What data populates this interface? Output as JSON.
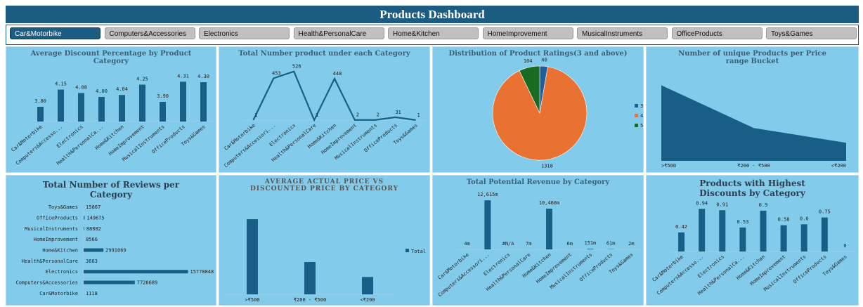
{
  "title": "Products Dashboard",
  "slicers": [
    "Car&Motorbike",
    "Computers&Accessories",
    "Electronics",
    "Health&PersonalCare",
    "Home&Kitchen",
    "HomeImprovement",
    "MusicalInstruments",
    "OfficeProducts",
    "Toys&Games"
  ],
  "chart_data": [
    {
      "type": "bar",
      "title": "Average Discount Percentage by Product Category",
      "categories": [
        "Car&Motorbike",
        "Computers&Accesso...",
        "Electronics",
        "Health&PersonalCa...",
        "Home&Kitchen",
        "HomeImprovement",
        "MusicalInstruments",
        "OfficeProducts",
        "Toys&Games"
      ],
      "values": [
        3.8,
        4.15,
        4.08,
        4.0,
        4.04,
        4.25,
        3.9,
        4.31,
        4.3
      ],
      "value_labels": [
        "3.80",
        "4.15",
        "4.08",
        "4.00",
        "4.04",
        "4.25",
        "3.90",
        "4.31",
        "4.30"
      ],
      "color": "#185e86",
      "ylim": [
        3.5,
        4.4
      ],
      "data_labels": true
    },
    {
      "type": "line",
      "title": "Total Number product under each Category",
      "categories": [
        "Car&Motorbike",
        "Computers&Accessori...",
        "Electronics",
        "Health&PersonalCare",
        "Home&Kitchen",
        "HomeImprovement",
        "MusicalInstruments",
        "OfficeProducts",
        "Toys&Games"
      ],
      "values": [
        1,
        453,
        526,
        1,
        448,
        2,
        2,
        31,
        1
      ],
      "color": "#185e86",
      "ylim": [
        0,
        600
      ],
      "data_labels": true
    },
    {
      "type": "pie",
      "title": "Distribution of Product Ratings(3 and above)",
      "categories": [
        "3",
        "4",
        "5"
      ],
      "values": [
        40,
        1318,
        104
      ],
      "colors": [
        "#1f5f99",
        "#e97132",
        "#196b24"
      ],
      "legend": "right"
    },
    {
      "type": "area",
      "title": "Number of unique Products per Price range Bucket",
      "categories": [
        ">₹500",
        "₹200 - ₹500",
        "<₹200"
      ],
      "values": [
        920,
        400,
        220
      ],
      "color": "#185e86",
      "ylim": [
        0,
        1000
      ]
    },
    {
      "type": "barh",
      "title": "Total Number of Reviews per Category",
      "categories": [
        "Car&Motorbike",
        "Computers&Accessories",
        "Electronics",
        "Health&PersonalCare",
        "Home&Kitchen",
        "HomeImprovement",
        "MusicalInstruments",
        "OfficeProducts",
        "Toys&Games"
      ],
      "values": [
        1118,
        7728689,
        15778848,
        3663,
        2991069,
        8566,
        88882,
        149675,
        15867
      ],
      "color": "#185e86",
      "xlim": [
        0,
        17000000
      ],
      "data_labels": true
    },
    {
      "type": "bar",
      "title": "AVERAGE ACTUAL PRICE VS DISCOUNTED PRICE BY CATEGORY",
      "categories": [
        ">₹500",
        "₹200 - ₹500",
        "<₹200"
      ],
      "series": [
        {
          "name": "Total",
          "color": "#185e86",
          "values": [
            930,
            400,
            215
          ]
        }
      ],
      "ylim": [
        0,
        1000
      ],
      "legend": "right"
    },
    {
      "type": "bar",
      "title": "Total Potential Revenue by Category",
      "categories": [
        "Car&Motorbike",
        "Computers&Accessori...",
        "Electronics",
        "Health&PersonalCare",
        "Home&Kitchen",
        "HomeImprovement",
        "MusicalInstruments",
        "OfficeProducts",
        "Toys&Games"
      ],
      "values": [
        4,
        12615,
        null,
        7,
        10460,
        6,
        151,
        61,
        2
      ],
      "value_labels": [
        "4m",
        "12,615m",
        "#N/A",
        "7m",
        "10,460m",
        "6m",
        "151m",
        "61m",
        "2m"
      ],
      "color": "#185e86",
      "ylim": [
        0,
        13000
      ],
      "data_labels": true
    },
    {
      "type": "bar",
      "title": "Products with Highest Discounts by Category",
      "categories": [
        "Car&Motorbike",
        "Computers&Accesso...",
        "Electronics",
        "Health&PersonalCa...",
        "Home&Kitchen",
        "HomeImprovement",
        "MusicalInstruments",
        "OfficeProducts",
        "Toys&Games"
      ],
      "values": [
        0.42,
        0.94,
        0.91,
        0.53,
        0.9,
        0.58,
        0.6,
        0.75,
        0
      ],
      "color": "#185e86",
      "ylim": [
        0,
        1.1
      ],
      "data_labels": true
    }
  ]
}
